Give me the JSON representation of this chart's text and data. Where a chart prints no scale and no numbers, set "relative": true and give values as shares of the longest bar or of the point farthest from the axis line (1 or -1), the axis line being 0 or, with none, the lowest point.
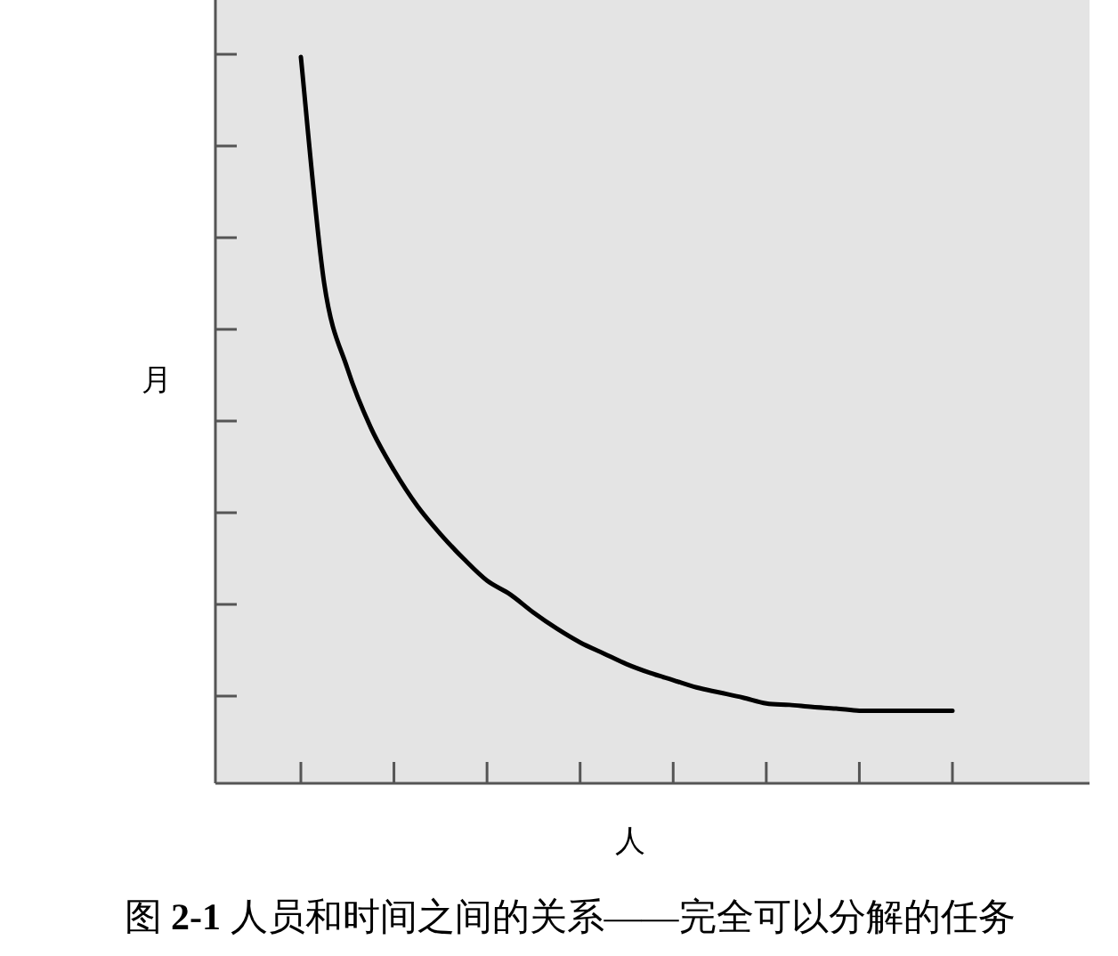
{
  "chart_data": {
    "type": "line",
    "title": "图 **2-1** 人员和时间之间的关系——完全可以分解的任务",
    "xlabel": "人",
    "ylabel": "月",
    "categories": [
      null,
      null,
      null,
      null,
      null,
      null,
      null,
      null,
      null,
      null,
      null,
      null,
      null,
      null,
      null,
      null,
      null,
      null,
      null,
      null,
      null,
      null,
      null,
      null,
      null,
      null,
      null,
      null,
      null
    ],
    "relative": true,
    "line_style": "solid",
    "series": [
      {
        "color": "#000000",
        "values": [
          1.0,
          0.689,
          0.571,
          0.49,
          0.431,
          0.382,
          0.343,
          0.309,
          0.279,
          0.26,
          0.235,
          0.213,
          0.194,
          0.179,
          0.164,
          0.152,
          0.142,
          0.132,
          0.125,
          0.118,
          0.11,
          0.108,
          0.105,
          0.103,
          0.1,
          0.1,
          0.1,
          0.1,
          0.1
        ]
      }
    ]
  }
}
